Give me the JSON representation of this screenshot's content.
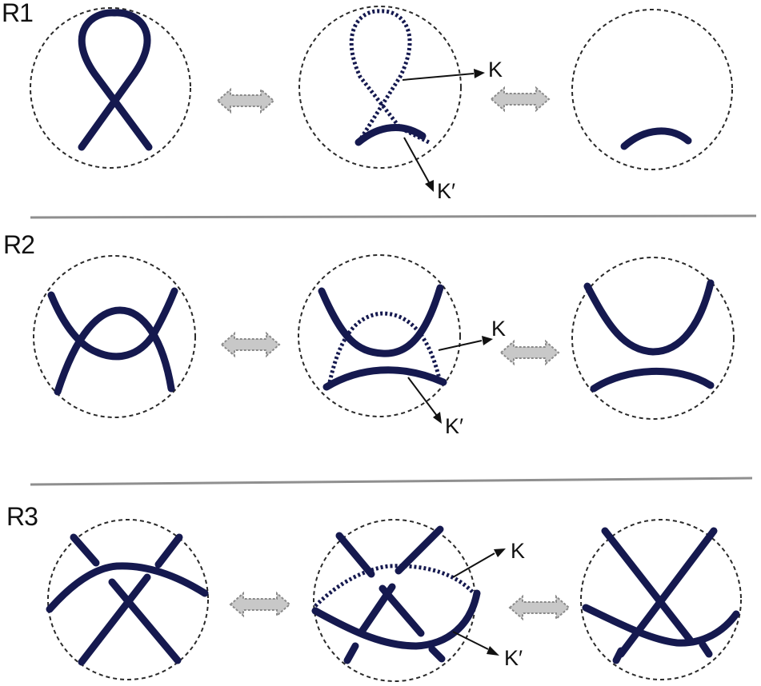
{
  "colors": {
    "strand": "#15194f",
    "circle": "#2a2a2a",
    "arrow_fill": "#c8c8c8",
    "arrow_stroke": "#8a8a8a",
    "divider": "#8f8f8f",
    "pointer": "#111111"
  },
  "rows": [
    {
      "label": "R1",
      "k_label": "K",
      "kprime_label": "K′"
    },
    {
      "label": "R2",
      "k_label": "K",
      "kprime_label": "K′"
    },
    {
      "label": "R3",
      "k_label": "K",
      "kprime_label": "K′"
    }
  ],
  "icons": {
    "equivalence_arrow": "double-headed-arrow-icon"
  }
}
